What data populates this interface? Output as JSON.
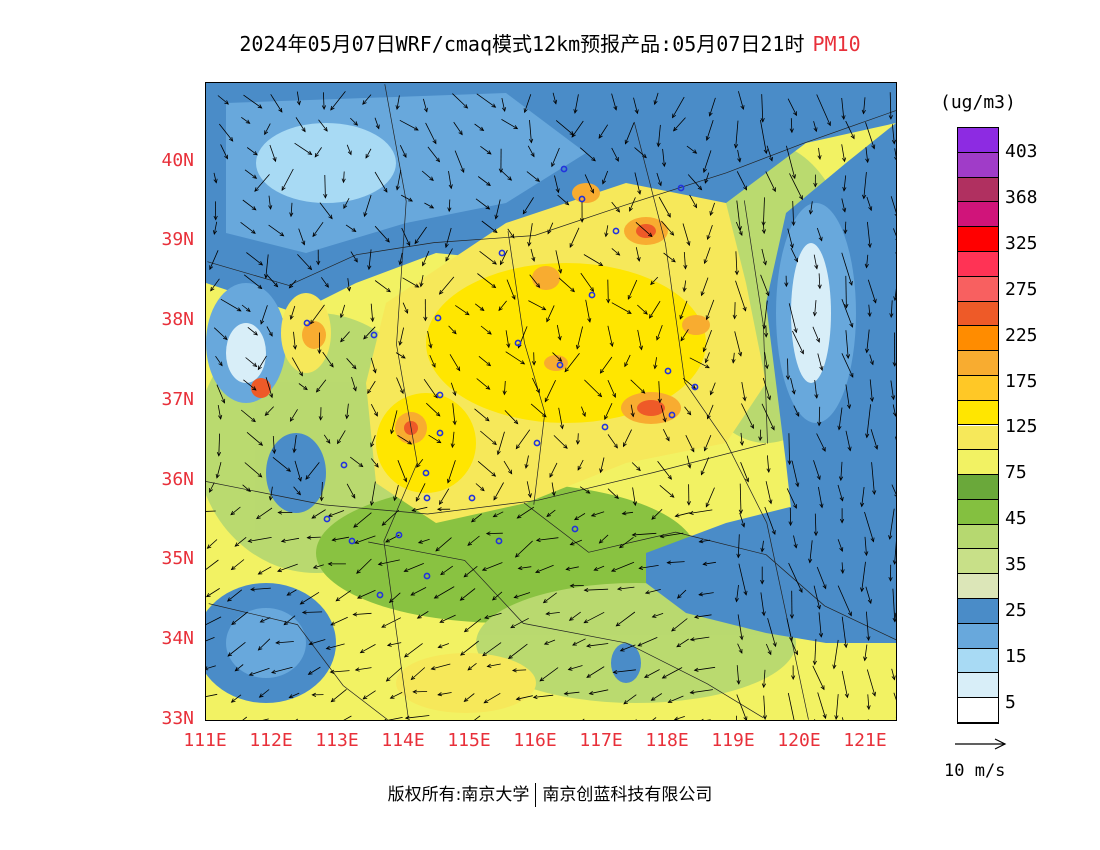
{
  "title": {
    "text": "2024年05月07日WRF/cmaq模式12km预报产品:05月07日21时",
    "variable": "PM10"
  },
  "map": {
    "lat_labels": [
      "33N",
      "34N",
      "35N",
      "36N",
      "37N",
      "38N",
      "39N",
      "40N"
    ],
    "lon_labels": [
      "111E",
      "112E",
      "113E",
      "114E",
      "115E",
      "116E",
      "117E",
      "118E",
      "119E",
      "120E",
      "121E"
    ],
    "lon_range": [
      111,
      121.5
    ],
    "lat_range": [
      33,
      41
    ],
    "background_color": "#f2f263"
  },
  "legend": {
    "unit": "(ug/m3)",
    "labels": [
      "403",
      "368",
      "325",
      "275",
      "225",
      "175",
      "125",
      "75",
      "45",
      "35",
      "25",
      "15",
      "5"
    ],
    "colors": [
      "#8d2be2",
      "#a03cc8",
      "#b03060",
      "#d0147a",
      "#ff0000",
      "#ff3355",
      "#f86060",
      "#ee5a28",
      "#ff8c00",
      "#f8ac30",
      "#ffc826",
      "#ffe600",
      "#f6e85a",
      "#f2f263",
      "#6aa83a",
      "#84c040",
      "#b6d870",
      "#c8e088",
      "#dce6b8",
      "#4a8cc8",
      "#68a8dc",
      "#a8daf4",
      "#d8eef8",
      "#ffffff"
    ],
    "reference_vector": "10 m/s"
  },
  "footer": {
    "left": "版权所有:南京大学",
    "right": "南京创蓝科技有限公司"
  }
}
